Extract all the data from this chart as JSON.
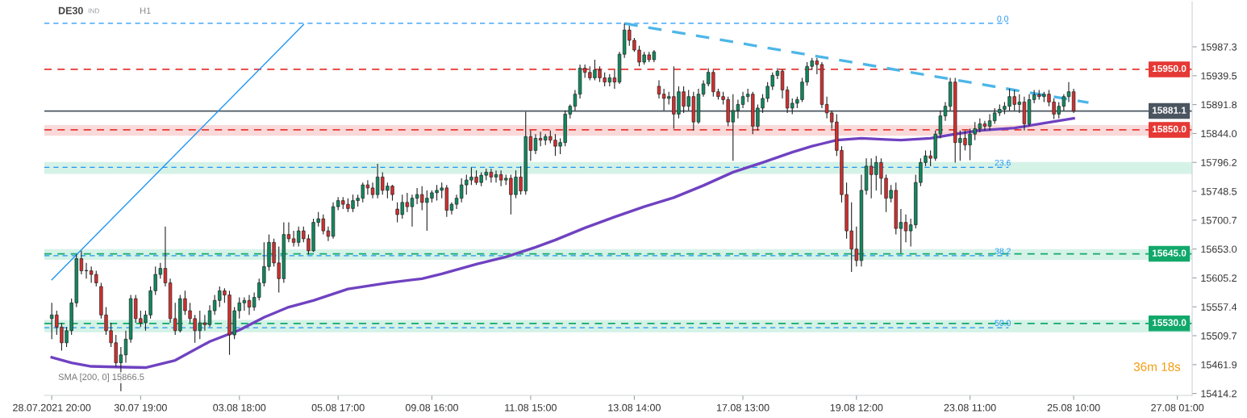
{
  "chart_data": {
    "type": "candlestick",
    "title": "DE30",
    "annotations": [
      "IND",
      "H1",
      "SMA [200, 0] 15866.5",
      "36m 18s",
      {
        "text": "0.0",
        "y": 16026
      },
      {
        "text": "23.6",
        "y": 15788
      },
      {
        "text": "38.2",
        "y": 15642
      },
      {
        "text": "50.0",
        "y": 15523
      }
    ],
    "categories": [
      "28.07.2021 20:00",
      null,
      null,
      null,
      null,
      null,
      null,
      null,
      null,
      null,
      null,
      null,
      null,
      null,
      null,
      null,
      null,
      null,
      "30.07 19:00",
      null,
      null,
      null,
      null,
      null,
      null,
      null,
      null,
      null,
      null,
      null,
      null,
      null,
      null,
      null,
      null,
      null,
      null,
      null,
      "03.08 18:00",
      null,
      null,
      null,
      null,
      null,
      null,
      null,
      null,
      null,
      null,
      null,
      null,
      null,
      null,
      null,
      null,
      null,
      null,
      null,
      "05.08 17:00",
      null,
      null,
      null,
      null,
      null,
      null,
      null,
      null,
      null,
      null,
      null,
      null,
      null,
      null,
      null,
      null,
      null,
      null,
      "09.08 16:00",
      null,
      null,
      null,
      null,
      null,
      null,
      null,
      null,
      null,
      null,
      null,
      null,
      null,
      null,
      null,
      null,
      null,
      null,
      null,
      "11.08 15:00",
      null,
      null,
      null,
      null,
      null,
      null,
      null,
      null,
      null,
      null,
      null,
      null,
      null,
      null,
      null,
      null,
      null,
      null,
      null,
      null,
      "13.08 14:00",
      null,
      null,
      null,
      null,
      null,
      null,
      null,
      null,
      null,
      null,
      null,
      null,
      null,
      null,
      null,
      null,
      null,
      null,
      null,
      null,
      null,
      "17.08 13:00",
      null,
      null,
      null,
      null,
      null,
      null,
      null,
      null,
      null,
      null,
      null,
      null,
      null,
      null,
      null,
      null,
      null,
      null,
      null,
      null,
      null,
      null,
      "19.08 12:00",
      null,
      null,
      null,
      null,
      null,
      null,
      null,
      null,
      null,
      null,
      null,
      null,
      null,
      null,
      null,
      null,
      null,
      null,
      null,
      null,
      null,
      null,
      "23.08 11:00",
      null,
      null,
      null,
      null,
      null,
      null,
      null,
      null,
      null,
      null,
      null,
      null,
      null,
      null,
      null,
      null,
      null,
      null,
      null,
      null,
      "25.08 10:00",
      null,
      null,
      null,
      null,
      null,
      null,
      null,
      null,
      null,
      null,
      null,
      null,
      null,
      null,
      null,
      null,
      null,
      null,
      null,
      null,
      "27.08 01:00"
    ],
    "ylim": [
      15411,
      16062
    ],
    "yticks": [
      15414.2,
      15461.9,
      15509.7,
      15557.4,
      15605.2,
      {
        "value": 15653.0,
        "label": "15653.0"
      },
      15700.7,
      15748.5,
      15796.2,
      {
        "value": 15844.0,
        "label": "15844.0"
      },
      15891.8,
      15939.5,
      15987.3
    ],
    "grid": false,
    "legend": false,
    "ohlc": [
      [
        15538,
        15564,
        15504,
        15544
      ],
      [
        15544,
        15551,
        15511,
        15524
      ],
      [
        15524,
        15531,
        15485,
        15498
      ],
      [
        15498,
        15524,
        15491,
        15518
      ],
      [
        15518,
        15571,
        15511,
        15564
      ],
      [
        15564,
        15644,
        15557,
        15637
      ],
      [
        15637,
        15650,
        15611,
        15617
      ],
      [
        15617,
        15630,
        15604,
        15617
      ],
      [
        15617,
        15624,
        15597,
        15611
      ],
      [
        15611,
        15617,
        15591,
        15597
      ],
      [
        15591,
        15597,
        15538,
        15544
      ],
      [
        15544,
        15557,
        15511,
        15518
      ],
      [
        15518,
        15531,
        15491,
        15498
      ],
      [
        15498,
        15511,
        15458,
        15465
      ],
      [
        15465,
        15491,
        15418,
        15478
      ],
      [
        15478,
        15518,
        15465,
        15504
      ],
      [
        15504,
        15577,
        15498,
        15571
      ],
      [
        15571,
        15577,
        15531,
        15538
      ],
      [
        15538,
        15551,
        15524,
        15531
      ],
      [
        15531,
        15551,
        15518,
        15544
      ],
      [
        15544,
        15591,
        15538,
        15584
      ],
      [
        15584,
        15624,
        15577,
        15611
      ],
      [
        15611,
        15630,
        15604,
        15621
      ],
      [
        15621,
        15690,
        15591,
        15597
      ],
      [
        15597,
        15604,
        15531,
        15538
      ],
      [
        15538,
        15564,
        15511,
        15518
      ],
      [
        15518,
        15577,
        15515,
        15571
      ],
      [
        15571,
        15584,
        15544,
        15551
      ],
      [
        15551,
        15564,
        15531,
        15538
      ],
      [
        15538,
        15544,
        15498,
        15518
      ],
      [
        15518,
        15551,
        15504,
        15531
      ],
      [
        15531,
        15544,
        15518,
        15528
      ],
      [
        15528,
        15560,
        15524,
        15551
      ],
      [
        15551,
        15577,
        15544,
        15568
      ],
      [
        15568,
        15591,
        15557,
        15584
      ],
      [
        15584,
        15588,
        15564,
        15577
      ],
      [
        15577,
        15584,
        15478,
        15511
      ],
      [
        15511,
        15557,
        15504,
        15551
      ],
      [
        15551,
        15573,
        15538,
        15564
      ],
      [
        15564,
        15573,
        15551,
        15568
      ],
      [
        15568,
        15577,
        15544,
        15557
      ],
      [
        15557,
        15581,
        15551,
        15573
      ],
      [
        15573,
        15604,
        15568,
        15597
      ],
      [
        15597,
        15664,
        15591,
        15624
      ],
      [
        15624,
        15677,
        15617,
        15664
      ],
      [
        15664,
        15670,
        15624,
        15630
      ],
      [
        15630,
        15657,
        15581,
        15604
      ],
      [
        15604,
        15697,
        15597,
        15677
      ],
      [
        15677,
        15697,
        15664,
        15670
      ],
      [
        15670,
        15683,
        15657,
        15664
      ],
      [
        15664,
        15690,
        15657,
        15683
      ],
      [
        15683,
        15690,
        15664,
        15670
      ],
      [
        15670,
        15677,
        15644,
        15650
      ],
      [
        15650,
        15703,
        15648,
        15697
      ],
      [
        15697,
        15714,
        15690,
        15703
      ],
      [
        15703,
        15710,
        15677,
        15683
      ],
      [
        15683,
        15690,
        15666,
        15674
      ],
      [
        15674,
        15730,
        15670,
        15723
      ],
      [
        15723,
        15739,
        15717,
        15733
      ],
      [
        15733,
        15739,
        15719,
        15727
      ],
      [
        15727,
        15737,
        15714,
        15720
      ],
      [
        15720,
        15743,
        15714,
        15733
      ],
      [
        15733,
        15743,
        15723,
        15737
      ],
      [
        15737,
        15763,
        15730,
        15759
      ],
      [
        15759,
        15767,
        15743,
        15754
      ],
      [
        15754,
        15763,
        15737,
        15743
      ],
      [
        15743,
        15794,
        15737,
        15772
      ],
      [
        15772,
        15780,
        15743,
        15750
      ],
      [
        15750,
        15763,
        15737,
        15757
      ],
      [
        15757,
        15759,
        15733,
        15743
      ],
      [
        15719,
        15730,
        15697,
        15710
      ],
      [
        15710,
        15743,
        15703,
        15730
      ],
      [
        15730,
        15746,
        15714,
        15723
      ],
      [
        15723,
        15743,
        15690,
        15737
      ],
      [
        15737,
        15754,
        15727,
        15743
      ],
      [
        15743,
        15757,
        15717,
        15730
      ],
      [
        15730,
        15750,
        15683,
        15737
      ],
      [
        15737,
        15750,
        15730,
        15746
      ],
      [
        15746,
        15759,
        15733,
        15750
      ],
      [
        15750,
        15763,
        15737,
        15754
      ],
      [
        15754,
        15759,
        15706,
        15717
      ],
      [
        15717,
        15730,
        15710,
        15727
      ],
      [
        15727,
        15743,
        15719,
        15737
      ],
      [
        15737,
        15770,
        15730,
        15759
      ],
      [
        15759,
        15776,
        15743,
        15767
      ],
      [
        15767,
        15788,
        15759,
        15772
      ],
      [
        15772,
        15783,
        15759,
        15763
      ],
      [
        15763,
        15780,
        15757,
        15775
      ],
      [
        15775,
        15786,
        15767,
        15780
      ],
      [
        15780,
        15786,
        15763,
        15772
      ],
      [
        15772,
        15783,
        15763,
        15776
      ],
      [
        15776,
        15783,
        15757,
        15767
      ],
      [
        15767,
        15776,
        15759,
        15770
      ],
      [
        15770,
        15776,
        15710,
        15743
      ],
      [
        15743,
        15783,
        15737,
        15772
      ],
      [
        15772,
        15790,
        15743,
        15749
      ],
      [
        15749,
        15880,
        15743,
        15839
      ],
      [
        15839,
        15849,
        15799,
        15816
      ],
      [
        15816,
        15843,
        15810,
        15836
      ],
      [
        15836,
        15847,
        15823,
        15833
      ],
      [
        15833,
        15843,
        15825,
        15839
      ],
      [
        15839,
        15849,
        15828,
        15833
      ],
      [
        15833,
        15843,
        15807,
        15823
      ],
      [
        15823,
        15836,
        15810,
        15829
      ],
      [
        15829,
        15882,
        15823,
        15876
      ],
      [
        15876,
        15892,
        15869,
        15889
      ],
      [
        15889,
        15916,
        15882,
        15909
      ],
      [
        15909,
        15958,
        15902,
        15952
      ],
      [
        15952,
        15958,
        15936,
        15945
      ],
      [
        15945,
        15955,
        15932,
        15936
      ],
      [
        15936,
        15966,
        15932,
        15949
      ],
      [
        15949,
        15955,
        15929,
        15936
      ],
      [
        15936,
        15945,
        15922,
        15929
      ],
      [
        15929,
        15942,
        15922,
        15936
      ],
      [
        15936,
        15949,
        15918,
        15929
      ],
      [
        15929,
        15979,
        15926,
        15975
      ],
      [
        15975,
        16026,
        15969,
        16015
      ],
      [
        16015,
        16022,
        15989,
        15998
      ],
      [
        15998,
        16002,
        15979,
        15982
      ],
      [
        15982,
        15989,
        15955,
        15962
      ],
      [
        15962,
        15979,
        15958,
        15974
      ],
      [
        15974,
        15979,
        15962,
        15966
      ],
      [
        15966,
        15982,
        15962,
        15979
      ],
      [
        15922,
        15932,
        15902,
        15909
      ],
      [
        15909,
        15918,
        15882,
        15902
      ],
      [
        15902,
        15913,
        15892,
        15905
      ],
      [
        15905,
        15955,
        15852,
        15876
      ],
      [
        15876,
        15922,
        15869,
        15913
      ],
      [
        15913,
        15922,
        15878,
        15889
      ],
      [
        15889,
        15916,
        15882,
        15905
      ],
      [
        15905,
        15913,
        15849,
        15863
      ],
      [
        15863,
        15918,
        15860,
        15909
      ],
      [
        15909,
        15932,
        15905,
        15926
      ],
      [
        15926,
        15952,
        15922,
        15945
      ],
      [
        15945,
        15949,
        15905,
        15913
      ],
      [
        15913,
        15918,
        15900,
        15905
      ],
      [
        15905,
        15913,
        15892,
        15900
      ],
      [
        15900,
        15905,
        15856,
        15863
      ],
      [
        15863,
        15909,
        15799,
        15882
      ],
      [
        15882,
        15900,
        15869,
        15892
      ],
      [
        15892,
        15913,
        15886,
        15905
      ],
      [
        15905,
        15918,
        15896,
        15909
      ],
      [
        15909,
        15913,
        15843,
        15856
      ],
      [
        15856,
        15892,
        15849,
        15886
      ],
      [
        15886,
        15909,
        15878,
        15902
      ],
      [
        15902,
        15929,
        15896,
        15922
      ],
      [
        15922,
        15945,
        15916,
        15940
      ],
      [
        15940,
        15952,
        15934,
        15947
      ],
      [
        15947,
        15950,
        15902,
        15916
      ],
      [
        15916,
        15922,
        15878,
        15886
      ],
      [
        15886,
        15902,
        15876,
        15894
      ],
      [
        15894,
        15905,
        15886,
        15900
      ],
      [
        15900,
        15936,
        15896,
        15929
      ],
      [
        15929,
        15962,
        15923,
        15955
      ],
      [
        15955,
        15969,
        15949,
        15964
      ],
      [
        15964,
        15969,
        15942,
        15958
      ],
      [
        15958,
        15962,
        15886,
        15892
      ],
      [
        15892,
        15905,
        15869,
        15878
      ],
      [
        15878,
        15882,
        15852,
        15863
      ],
      [
        15863,
        15876,
        15807,
        15816
      ],
      [
        15816,
        15823,
        15730,
        15743
      ],
      [
        15743,
        15763,
        15670,
        15683
      ],
      [
        15683,
        15730,
        15615,
        15653
      ],
      [
        15653,
        15690,
        15624,
        15634
      ],
      [
        15634,
        15776,
        15624,
        15750
      ],
      [
        15750,
        15803,
        15743,
        15790
      ],
      [
        15790,
        15803,
        15737,
        15776
      ],
      [
        15776,
        15807,
        15750,
        15796
      ],
      [
        15796,
        15803,
        15743,
        15770
      ],
      [
        15770,
        15776,
        15714,
        15737
      ],
      [
        15737,
        15759,
        15730,
        15750
      ],
      [
        15750,
        15763,
        15677,
        15687
      ],
      [
        15687,
        15719,
        15646,
        15697
      ],
      [
        15697,
        15710,
        15664,
        15683
      ],
      [
        15683,
        15703,
        15657,
        15693
      ],
      [
        15693,
        15776,
        15687,
        15763
      ],
      [
        15763,
        15803,
        15757,
        15796
      ],
      [
        15796,
        15816,
        15790,
        15807
      ],
      [
        15807,
        15816,
        15790,
        15803
      ],
      [
        15803,
        15849,
        15799,
        15843
      ],
      [
        15843,
        15882,
        15836,
        15873
      ],
      [
        15873,
        15896,
        15865,
        15889
      ],
      [
        15889,
        15936,
        15882,
        15929
      ],
      [
        15929,
        15936,
        15796,
        15829
      ],
      [
        15829,
        15849,
        15799,
        15836
      ],
      [
        15836,
        15849,
        15816,
        15825
      ],
      [
        15825,
        15852,
        15800,
        15843
      ],
      [
        15843,
        15863,
        15833,
        15852
      ],
      [
        15852,
        15869,
        15846,
        15860
      ],
      [
        15860,
        15865,
        15849,
        15856
      ],
      [
        15856,
        15876,
        15849,
        15865
      ],
      [
        15865,
        15886,
        15860,
        15878
      ],
      [
        15878,
        15892,
        15873,
        15884
      ],
      [
        15884,
        15896,
        15876,
        15889
      ],
      [
        15889,
        15918,
        15882,
        15905
      ],
      [
        15905,
        15916,
        15882,
        15892
      ],
      [
        15892,
        15909,
        15878,
        15896
      ],
      [
        15896,
        15905,
        15849,
        15860
      ],
      [
        15860,
        15909,
        15856,
        15900
      ],
      [
        15900,
        15916,
        15894,
        15908
      ],
      [
        15908,
        15916,
        15900,
        15905
      ],
      [
        15905,
        15913,
        15896,
        15909
      ],
      [
        15909,
        15916,
        15889,
        15896
      ],
      [
        15896,
        15902,
        15868,
        15876
      ],
      [
        15876,
        15896,
        15869,
        15889
      ],
      [
        15889,
        15909,
        15882,
        15905
      ],
      [
        15905,
        15929,
        15896,
        15913
      ],
      [
        15913,
        15918,
        15878,
        15881
      ],
      null,
      null,
      null,
      null,
      null,
      null,
      null,
      null,
      null,
      null,
      null,
      null,
      null,
      null,
      null,
      null,
      null,
      null,
      null,
      null,
      null
    ],
    "colors": [
      "#0f8a5f",
      "#d32f2f",
      "#d32f2f",
      "#0f8a5f",
      "#0f8a5f",
      "#0f8a5f",
      "#d32f2f",
      "#0f8a5f",
      "#d32f2f",
      "#d32f2f",
      "#d32f2f",
      "#d32f2f",
      "#d32f2f",
      "#d32f2f",
      "#0f8a5f",
      "#0f8a5f",
      "#0f8a5f",
      "#d32f2f",
      "#d32f2f",
      "#0f8a5f",
      "#0f8a5f",
      "#0f8a5f",
      "#0f8a5f",
      "#d32f2f",
      "#d32f2f",
      "#d32f2f",
      "#0f8a5f",
      "#d32f2f",
      "#d32f2f",
      "#d32f2f",
      "#0f8a5f",
      "#d32f2f",
      "#0f8a5f",
      "#0f8a5f",
      "#0f8a5f",
      "#d32f2f",
      "#d32f2f",
      "#0f8a5f",
      "#0f8a5f",
      "#0f8a5f",
      "#d32f2f",
      "#0f8a5f",
      "#0f8a5f",
      "#0f8a5f",
      "#0f8a5f",
      "#d32f2f",
      "#d32f2f",
      "#0f8a5f",
      "#d32f2f",
      "#d32f2f",
      "#0f8a5f",
      "#d32f2f",
      "#d32f2f",
      "#0f8a5f",
      "#0f8a5f",
      "#d32f2f",
      "#d32f2f",
      "#0f8a5f",
      "#0f8a5f",
      "#d32f2f",
      "#d32f2f",
      "#0f8a5f",
      "#0f8a5f",
      "#0f8a5f",
      "#d32f2f",
      "#d32f2f",
      "#0f8a5f",
      "#d32f2f",
      "#0f8a5f",
      "#d32f2f",
      "#d32f2f",
      "#0f8a5f",
      "#d32f2f",
      "#0f8a5f",
      "#0f8a5f",
      "#d32f2f",
      "#0f8a5f",
      "#0f8a5f",
      "#0f8a5f",
      "#0f8a5f",
      "#d32f2f",
      "#0f8a5f",
      "#0f8a5f",
      "#0f8a5f",
      "#0f8a5f",
      "#0f8a5f",
      "#d32f2f",
      "#0f8a5f",
      "#0f8a5f",
      "#d32f2f",
      "#0f8a5f",
      "#d32f2f",
      "#0f8a5f",
      "#d32f2f",
      "#0f8a5f",
      "#d32f2f",
      "#0f8a5f",
      "#d32f2f",
      "#0f8a5f",
      "#d32f2f",
      "#0f8a5f",
      "#d32f2f",
      "#d32f2f",
      "#0f8a5f",
      "#0f8a5f",
      "#0f8a5f",
      "#0f8a5f",
      "#0f8a5f",
      "#d32f2f",
      "#d32f2f",
      "#0f8a5f",
      "#d32f2f",
      "#d32f2f",
      "#0f8a5f",
      "#d32f2f",
      "#0f8a5f",
      "#0f8a5f",
      "#d32f2f",
      "#d32f2f",
      "#d32f2f",
      "#0f8a5f",
      "#d32f2f",
      "#0f8a5f",
      "#d32f2f",
      "#d32f2f",
      "#0f8a5f",
      "#d32f2f",
      "#0f8a5f",
      "#d32f2f",
      "#0f8a5f",
      "#d32f2f",
      "#0f8a5f",
      "#0f8a5f",
      "#0f8a5f",
      "#d32f2f",
      "#d32f2f",
      "#d32f2f",
      "#d32f2f",
      "#0f8a5f",
      "#0f8a5f",
      "#0f8a5f",
      "#0f8a5f",
      "#d32f2f",
      "#0f8a5f",
      "#0f8a5f",
      "#0f8a5f",
      "#0f8a5f",
      "#0f8a5f",
      "#d32f2f",
      "#d32f2f",
      "#0f8a5f",
      "#0f8a5f",
      "#0f8a5f",
      "#0f8a5f",
      "#0f8a5f",
      "#d32f2f",
      "#d32f2f",
      "#d32f2f",
      "#d32f2f",
      "#d32f2f",
      "#d32f2f",
      "#d32f2f",
      "#d32f2f",
      "#d32f2f",
      "#0f8a5f",
      "#0f8a5f",
      "#d32f2f",
      "#0f8a5f",
      "#d32f2f",
      "#d32f2f",
      "#0f8a5f",
      "#d32f2f",
      "#0f8a5f",
      "#d32f2f",
      "#0f8a5f",
      "#0f8a5f",
      "#0f8a5f",
      "#0f8a5f",
      "#d32f2f",
      "#0f8a5f",
      "#0f8a5f",
      "#0f8a5f",
      "#0f8a5f",
      "#d32f2f",
      "#0f8a5f",
      "#d32f2f",
      "#0f8a5f",
      "#0f8a5f",
      "#0f8a5f",
      "#d32f2f",
      "#0f8a5f",
      "#0f8a5f",
      "#0f8a5f",
      "#0f8a5f",
      "#0f8a5f",
      "#d32f2f",
      "#0f8a5f",
      "#d32f2f",
      "#0f8a5f",
      "#0f8a5f",
      "#d32f2f",
      "#0f8a5f",
      "#d32f2f",
      "#d32f2f",
      "#0f8a5f",
      "#0f8a5f",
      "#0f8a5f",
      "#d32f2f",
      null,
      null,
      null,
      null,
      null,
      null,
      null,
      null,
      null,
      null,
      null,
      null,
      null,
      null,
      null,
      null,
      null,
      null,
      null,
      null,
      null
    ],
    "series": [
      {
        "type": "line",
        "color": "#6f42c1",
        "line_style": "solid",
        "values": [
          15474,
          null,
          null,
          null,
          15465,
          null,
          null,
          null,
          15459,
          null,
          null,
          null,
          null,
          15458,
          null,
          null,
          null,
          null,
          null,
          15457,
          null,
          null,
          null,
          null,
          null,
          15469,
          null,
          null,
          null,
          null,
          null,
          null,
          15500,
          null,
          null,
          null,
          null,
          null,
          15519,
          null,
          null,
          null,
          null,
          15540,
          null,
          null,
          null,
          null,
          15557,
          null,
          null,
          null,
          null,
          15568,
          null,
          null,
          null,
          null,
          null,
          null,
          15587,
          null,
          null,
          null,
          null,
          null,
          null,
          null,
          15597,
          null,
          null,
          null,
          null,
          null,
          null,
          15604,
          null,
          null,
          null,
          15612,
          null,
          null,
          null,
          null,
          null,
          null,
          15628,
          null,
          null,
          null,
          null,
          null,
          15640,
          null,
          null,
          null,
          null,
          null,
          15656,
          null,
          null,
          null,
          15668,
          null,
          null,
          null,
          null,
          null,
          15688,
          null,
          null,
          null,
          null,
          null,
          15706,
          null,
          null,
          null,
          null,
          null,
          15723,
          null,
          null,
          null,
          null,
          null,
          15738,
          null,
          null,
          null,
          null,
          null,
          15758,
          null,
          null,
          null,
          null,
          null,
          15780,
          null,
          null,
          null,
          null,
          null,
          15796,
          null,
          null,
          null,
          null,
          null,
          15813,
          null,
          null,
          null,
          15823,
          null,
          null,
          null,
          null,
          15833,
          null,
          null,
          null,
          null,
          15836,
          null,
          null,
          null,
          null,
          15834,
          null,
          null,
          15833,
          null,
          null,
          null,
          null,
          null,
          15836,
          null,
          null,
          null,
          null,
          15843,
          null,
          null,
          null,
          null,
          15849,
          null,
          null,
          null,
          null,
          null,
          null,
          15853,
          null,
          null,
          null,
          null,
          null,
          15861,
          null,
          null,
          null,
          null,
          null,
          15869,
          null,
          null,
          null,
          null,
          null,
          null,
          null,
          null,
          null,
          null,
          null,
          null,
          null,
          null,
          null,
          null,
          null,
          null,
          null,
          null,
          null
        ]
      },
      {
        "type": "line",
        "color": "#4db6e8",
        "line_style": "dashed",
        "values": [
          null,
          null,
          null,
          null,
          null,
          null,
          null,
          null,
          null,
          null,
          null,
          null,
          null,
          null,
          null,
          null,
          null,
          null,
          null,
          null,
          null,
          null,
          null,
          null,
          null,
          null,
          null,
          null,
          null,
          null,
          null,
          null,
          null,
          null,
          null,
          null,
          null,
          null,
          null,
          null,
          null,
          null,
          null,
          null,
          null,
          null,
          null,
          null,
          null,
          null,
          null,
          null,
          null,
          null,
          null,
          null,
          null,
          null,
          null,
          null,
          null,
          null,
          null,
          null,
          null,
          null,
          null,
          null,
          null,
          null,
          null,
          null,
          null,
          null,
          null,
          null,
          null,
          null,
          null,
          null,
          null,
          null,
          null,
          null,
          null,
          null,
          null,
          null,
          null,
          null,
          null,
          null,
          null,
          null,
          null,
          null,
          null,
          null,
          null,
          null,
          null,
          null,
          null,
          null,
          null,
          null,
          null,
          null,
          null,
          null,
          null,
          null,
          null,
          null,
          null,
          null,
          16026,
          null,
          null,
          null,
          null,
          null,
          null,
          null,
          null,
          null,
          null,
          null,
          null,
          null,
          null,
          null,
          null,
          null,
          null,
          null,
          null,
          null,
          null,
          null,
          null,
          null,
          null,
          null,
          null,
          null,
          null,
          null,
          null,
          null,
          null,
          null,
          null,
          null,
          null,
          null,
          null,
          null,
          null,
          null,
          null,
          null,
          null,
          null,
          null,
          null,
          null,
          null,
          null,
          null,
          null,
          null,
          null,
          null,
          null,
          null,
          null,
          null,
          null,
          null,
          null,
          null,
          null,
          null,
          null,
          null,
          null,
          null,
          null,
          null,
          null,
          null,
          null,
          null,
          null,
          null,
          null,
          null,
          null,
          null,
          null,
          null,
          null,
          null,
          null,
          null,
          null,
          null,
          null,
          null,
          15895,
          null,
          null,
          null,
          null,
          null,
          null,
          null,
          null,
          null,
          null,
          null,
          null,
          null,
          null,
          null,
          null,
          null,
          null
        ]
      },
      {
        "type": "line",
        "color": "#2196f3",
        "line_style": "solid",
        "values": [
          15602,
          null,
          null,
          null,
          null,
          null,
          null,
          null,
          null,
          null,
          null,
          null,
          null,
          null,
          null,
          null,
          null,
          null,
          null,
          null,
          null,
          null,
          null,
          null,
          null,
          null,
          null,
          null,
          null,
          null,
          null,
          null,
          null,
          null,
          null,
          null,
          null,
          null,
          null,
          null,
          null,
          null,
          null,
          null,
          null,
          null,
          null,
          null,
          null,
          null,
          null,
          16024,
          null,
          null,
          null,
          null,
          null,
          null,
          null,
          null,
          null,
          null,
          null,
          null,
          null,
          null,
          null,
          null,
          null,
          null,
          null,
          null,
          null,
          null,
          null,
          null,
          null,
          null,
          null,
          null,
          null,
          null,
          null,
          null,
          null,
          null,
          null,
          null,
          null,
          null,
          null,
          null,
          null,
          null,
          null,
          null,
          null,
          null,
          null,
          null,
          null,
          null,
          null,
          null,
          null,
          null,
          null,
          null,
          null,
          null,
          null,
          null,
          null,
          null,
          null,
          null,
          null,
          null,
          null,
          null,
          null,
          null,
          null,
          null,
          null,
          null,
          null,
          null,
          null,
          null,
          null,
          null,
          null,
          null,
          null,
          null,
          null,
          null,
          null,
          null,
          null,
          null,
          null,
          null,
          null,
          null,
          null,
          null,
          null,
          null,
          null,
          null,
          null,
          null,
          null,
          null,
          null,
          null,
          null,
          null,
          null,
          null,
          null,
          null,
          null,
          null,
          null,
          null,
          null,
          null,
          null,
          null,
          null,
          null,
          null,
          null,
          null,
          null,
          null,
          null,
          null,
          null,
          null,
          null,
          null,
          null,
          null,
          null,
          null,
          null,
          null,
          null,
          null,
          null,
          null,
          null,
          null,
          null,
          null,
          null,
          null,
          null,
          null,
          null,
          null,
          null,
          null,
          null,
          null,
          null,
          null,
          null,
          null,
          null,
          null,
          null,
          null,
          null,
          null,
          null,
          null,
          null,
          null,
          null,
          null,
          null,
          null,
          null,
          null
        ]
      }
    ],
    "bands": [
      {
        "axis": "y",
        "from": 15841,
        "to": 15857,
        "color": "#f9d9d9"
      },
      {
        "axis": "y",
        "from": 15778,
        "to": 15796,
        "color": "#d5f2e7"
      },
      {
        "axis": "y",
        "from": 15636,
        "to": 15652,
        "color": "#d5f2e7"
      },
      {
        "axis": "y",
        "from": 15516,
        "to": 15535,
        "color": "#d5f2e7"
      }
    ],
    "ref_lines": [
      {
        "axis": "y",
        "value": 15950.0,
        "label": "15950.0",
        "color": "#e53935",
        "line_style": "dashed"
      },
      {
        "axis": "y",
        "value": 15850.0,
        "label": "15850.0",
        "color": "#e53935",
        "line_style": "dashed"
      },
      {
        "axis": "y",
        "value": 15645.0,
        "label": "15645.0",
        "color": "#12a86b",
        "line_style": "dashed"
      },
      {
        "axis": "y",
        "value": 15530.0,
        "label": "15530.0",
        "color": "#12a86b",
        "line_style": "dashed"
      },
      {
        "axis": "y",
        "value": 15881.1,
        "label": "15881.1",
        "color": "#4a5560",
        "line_style": "solid"
      },
      {
        "axis": "y",
        "value": 16026,
        "color": "#2196f3",
        "line_style": "dashed"
      },
      {
        "axis": "y",
        "value": 15788,
        "color": "#2196f3",
        "line_style": "dashed"
      },
      {
        "axis": "y",
        "value": 15642,
        "color": "#2196f3",
        "line_style": "dashed"
      },
      {
        "axis": "y",
        "value": 15523,
        "color": "#2196f3",
        "line_style": "dashed"
      }
    ]
  }
}
